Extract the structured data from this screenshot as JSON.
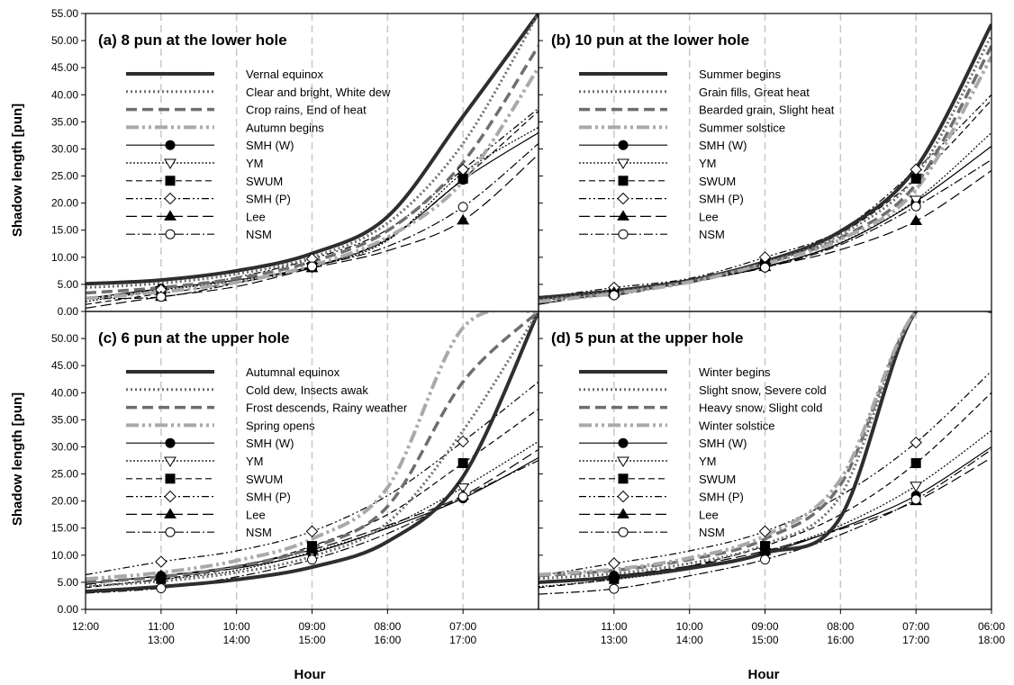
{
  "figure": {
    "ylabel": "Shadow length [pun]",
    "xlabel": "Hour"
  },
  "x_ticks": [
    {
      "top": "12:00",
      "bottom": ""
    },
    {
      "top": "11:00",
      "bottom": "13:00"
    },
    {
      "top": "10:00",
      "bottom": "14:00"
    },
    {
      "top": "09:00",
      "bottom": "15:00"
    },
    {
      "top": "08:00",
      "bottom": "16:00"
    },
    {
      "top": "07:00",
      "bottom": "17:00"
    },
    {
      "top": "06:00",
      "bottom": "18:00"
    }
  ],
  "y_ticks": [
    "0.00",
    "5.00",
    "10.00",
    "15.00",
    "20.00",
    "25.00",
    "30.00",
    "35.00",
    "40.00",
    "45.00",
    "50.00",
    "55.00"
  ],
  "colors": {
    "dark": "#2e2e2e",
    "mid": "#6e6e6e",
    "light": "#a9a9a9",
    "black": "#000000",
    "grid": "#c8c8c8"
  },
  "model_legend": [
    "SMH (W)",
    "YM",
    "SWUM",
    "SMH (P)",
    "Lee",
    "NSM"
  ],
  "chart_data": [
    {
      "type": "line",
      "title": "(a) 8 pun at the lower hole",
      "x": [
        "12:00",
        "11:00",
        "10:00",
        "09:00",
        "08:00",
        "07:00",
        "06:00"
      ],
      "ylim": [
        0,
        55
      ],
      "grid": "vertical dashed at each hour",
      "legend": "upper-left",
      "seasonal_series": [
        {
          "name": "Vernal equinox",
          "values": [
            5.1,
            5.8,
            7.5,
            10.7,
            17.5,
            36.0,
            55.0
          ]
        },
        {
          "name": "Clear and bright, White dew",
          "values": [
            4.4,
            5.2,
            6.9,
            10.0,
            16.3,
            31.0,
            55.0
          ]
        },
        {
          "name": "Crop rains, End of heat",
          "values": [
            3.4,
            4.4,
            6.1,
            9.2,
            14.9,
            27.5,
            49.0
          ]
        },
        {
          "name": "Autumn begins",
          "values": [
            2.4,
            3.6,
            5.4,
            8.5,
            13.7,
            24.0,
            45.0
          ]
        }
      ],
      "model_series": [
        {
          "name": "SMH (W)",
          "values": [
            2.4,
            4.2,
            5.8,
            8.3,
            13.3,
            24.3,
            33.0
          ]
        },
        {
          "name": "YM",
          "values": [
            1.8,
            3.9,
            5.6,
            8.2,
            13.1,
            25.6,
            34.0
          ]
        },
        {
          "name": "SWUM",
          "values": [
            1.3,
            3.3,
            5.3,
            8.2,
            13.5,
            24.5,
            37.0
          ]
        },
        {
          "name": "SMH (P)",
          "values": [
            2.2,
            4.0,
            6.3,
            9.7,
            15.1,
            26.2,
            37.5
          ]
        },
        {
          "name": "Lee",
          "values": [
            0.6,
            2.7,
            4.6,
            8.0,
            11.2,
            16.8,
            29.0
          ]
        },
        {
          "name": "NSM",
          "values": [
            2.4,
            2.7,
            5.2,
            8.3,
            12.0,
            19.3,
            31.0
          ]
        }
      ]
    },
    {
      "type": "line",
      "title": "(b) 10 pun at the lower hole",
      "x": [
        "12:00",
        "11:00",
        "10:00",
        "09:00",
        "08:00",
        "07:00",
        "06:00"
      ],
      "ylim": [
        0,
        55
      ],
      "grid": "vertical dashed at each hour",
      "legend": "upper-left",
      "seasonal_series": [
        {
          "name": "Summer begins",
          "values": [
            2.5,
            3.8,
            5.7,
            9.2,
            14.8,
            26.5,
            53.0
          ]
        },
        {
          "name": "Grain fills, Great heat",
          "values": [
            2.2,
            3.6,
            5.6,
            9.0,
            14.2,
            25.0,
            51.0
          ]
        },
        {
          "name": "Bearded grain, Slight heat",
          "values": [
            1.9,
            3.4,
            5.5,
            8.9,
            13.6,
            23.5,
            49.0
          ]
        },
        {
          "name": "Summer solstice",
          "values": [
            1.8,
            3.3,
            5.4,
            8.8,
            13.3,
            22.5,
            47.0
          ]
        }
      ],
      "model_series": [
        {
          "name": "SMH (W)",
          "values": [
            2.2,
            3.5,
            5.5,
            8.3,
            12.6,
            20.3,
            30.5
          ]
        },
        {
          "name": "YM",
          "values": [
            2.0,
            3.2,
            5.4,
            8.2,
            12.7,
            20.6,
            33.0
          ]
        },
        {
          "name": "SWUM",
          "values": [
            1.4,
            3.4,
            5.6,
            8.7,
            14.4,
            24.5,
            39.0
          ]
        },
        {
          "name": "SMH (P)",
          "values": [
            2.5,
            4.4,
            6.1,
            10.0,
            15.0,
            26.2,
            40.0
          ]
        },
        {
          "name": "Lee",
          "values": [
            1.3,
            3.5,
            5.3,
            8.2,
            11.4,
            16.7,
            26.0
          ]
        },
        {
          "name": "NSM",
          "values": [
            2.6,
            3.0,
            5.5,
            8.1,
            12.3,
            19.4,
            28.0
          ]
        }
      ]
    },
    {
      "type": "line",
      "title": "(c) 6 pun at the upper hole",
      "x": [
        "12:00",
        "11:00",
        "10:00",
        "09:00",
        "08:00",
        "07:00",
        "06:00"
      ],
      "ylim": [
        0,
        55
      ],
      "grid": "vertical dashed at each hour",
      "legend": "upper-left",
      "seasonal_series": [
        {
          "name": "Autumnal equinox",
          "values": [
            3.3,
            4.2,
            5.5,
            7.8,
            12.5,
            24.5,
            55.0
          ]
        },
        {
          "name": "Cold dew, Insects awak",
          "values": [
            4.3,
            5.2,
            6.8,
            9.8,
            16.0,
            33.0,
            55.0
          ]
        },
        {
          "name": "Frost descends, Rainy weather",
          "values": [
            5.0,
            6.0,
            7.9,
            11.4,
            19.0,
            42.0,
            55.0
          ]
        },
        {
          "name": "Spring opens",
          "values": [
            5.6,
            6.8,
            9.0,
            13.0,
            22.5,
            52.0,
            55.0
          ]
        }
      ],
      "model_series": [
        {
          "name": "SMH (W)",
          "values": [
            4.8,
            6.2,
            7.6,
            10.4,
            15.0,
            20.5,
            28.0
          ]
        },
        {
          "name": "YM",
          "values": [
            4.2,
            5.5,
            7.2,
            10.6,
            15.2,
            22.5,
            31.0
          ]
        },
        {
          "name": "SWUM",
          "values": [
            4.0,
            5.6,
            7.7,
            11.7,
            17.5,
            27.0,
            37.0
          ]
        },
        {
          "name": "SMH (P)",
          "values": [
            6.4,
            8.8,
            10.8,
            14.4,
            21.0,
            31.0,
            42.0
          ]
        },
        {
          "name": "Lee",
          "values": [
            4.6,
            6.2,
            8.0,
            11.0,
            15.5,
            21.0,
            29.5
          ]
        },
        {
          "name": "NSM",
          "values": [
            3.0,
            3.9,
            6.0,
            9.2,
            14.0,
            20.8,
            27.5
          ]
        }
      ]
    },
    {
      "type": "line",
      "title": "(d) 5 pun at the upper hole",
      "x": [
        "12:00",
        "11:00",
        "10:00",
        "09:00",
        "08:00",
        "07:00",
        "06:00"
      ],
      "ylim": [
        0,
        55
      ],
      "grid": "vertical dashed at each hour",
      "legend": "upper-left",
      "seasonal_series": [
        {
          "name": "Winter begins",
          "values": [
            5.0,
            5.9,
            7.6,
            10.4,
            17.0,
            55.0,
            55.0
          ]
        },
        {
          "name": "Slight snow, Severe cold",
          "values": [
            5.7,
            6.6,
            8.5,
            12.0,
            21.0,
            55.0,
            55.0
          ]
        },
        {
          "name": "Heavy snow, Slight cold",
          "values": [
            6.2,
            7.2,
            9.2,
            13.0,
            23.0,
            55.0,
            55.0
          ]
        },
        {
          "name": "Winter solstice",
          "values": [
            6.4,
            7.4,
            9.5,
            13.6,
            24.0,
            55.0,
            55.0
          ]
        }
      ],
      "model_series": [
        {
          "name": "SMH (W)",
          "values": [
            4.8,
            6.2,
            7.8,
            10.4,
            15.0,
            21.0,
            30.0
          ]
        },
        {
          "name": "YM",
          "values": [
            4.2,
            5.5,
            7.4,
            10.6,
            15.5,
            22.8,
            33.0
          ]
        },
        {
          "name": "SWUM",
          "values": [
            4.0,
            5.6,
            8.0,
            11.7,
            17.5,
            27.0,
            40.0
          ]
        },
        {
          "name": "SMH (P)",
          "values": [
            6.2,
            8.5,
            10.8,
            14.4,
            21.0,
            30.8,
            44.0
          ]
        },
        {
          "name": "Lee",
          "values": [
            4.8,
            6.2,
            8.0,
            10.8,
            14.8,
            20.0,
            28.0
          ]
        },
        {
          "name": "NSM",
          "values": [
            2.8,
            3.8,
            6.2,
            9.2,
            13.8,
            20.3,
            29.5
          ]
        }
      ]
    }
  ]
}
